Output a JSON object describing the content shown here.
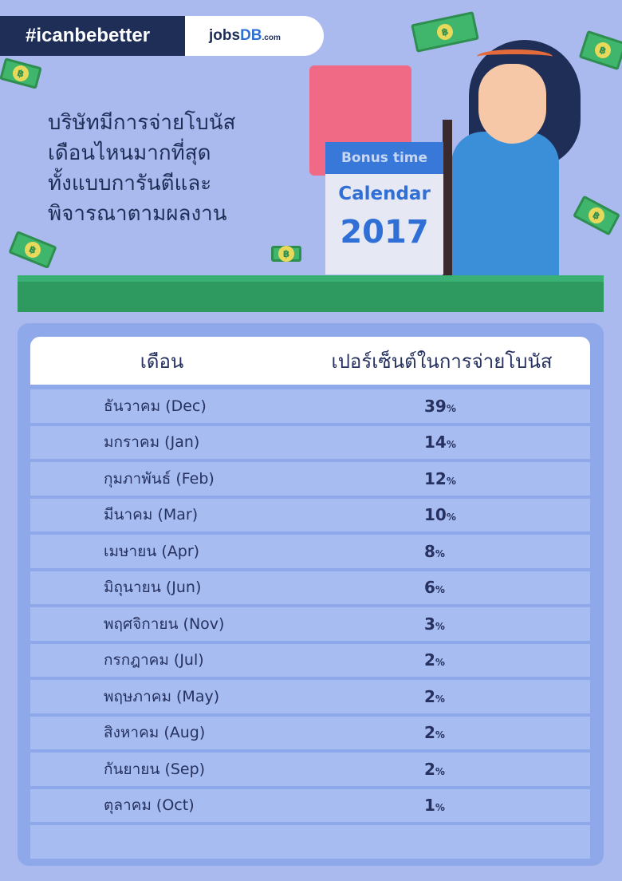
{
  "header": {
    "hashtag": "#icanbebetter",
    "logo": {
      "prefix": "jobs",
      "brand": "DB",
      "suffix": ".com"
    }
  },
  "headline": [
    "บริษัทมีการจ่ายโบนัส",
    "เดือนไหนมากที่สุด",
    "ทั้งแบบการันตีและ",
    "พิจารณาตามผลงาน"
  ],
  "calendar": {
    "band": "Bonus time",
    "title": "Calendar",
    "year": "2017"
  },
  "colors": {
    "background": "#abbaee",
    "navy": "#1f2e57",
    "green": "#2f9a60",
    "blue": "#2f6fd6",
    "pink": "#f06a86"
  },
  "chart_data": {
    "type": "table",
    "columns": [
      "เดือน",
      "เปอร์เซ็นต์ในการจ่ายโบนัส"
    ],
    "rows": [
      {
        "month": "ธันวาคม (Dec)",
        "value": "39",
        "unit": "%"
      },
      {
        "month": "มกราคม (Jan)",
        "value": "14",
        "unit": "%"
      },
      {
        "month": "กุมภาพันธ์ (Feb)",
        "value": "12",
        "unit": "%"
      },
      {
        "month": "มีนาคม (Mar)",
        "value": "10",
        "unit": "%"
      },
      {
        "month": "เมษายน (Apr)",
        "value": "8",
        "unit": "%"
      },
      {
        "month": "มิถุนายน (Jun)",
        "value": "6",
        "unit": "%"
      },
      {
        "month": "พฤศจิกายน (Nov)",
        "value": "3",
        "unit": "%"
      },
      {
        "month": "กรกฎาคม (Jul)",
        "value": "2",
        "unit": "%"
      },
      {
        "month": "พฤษภาคม (May)",
        "value": "2",
        "unit": "%"
      },
      {
        "month": "สิงหาคม (Aug)",
        "value": "2",
        "unit": "%"
      },
      {
        "month": "กันยายน (Sep)",
        "value": "2",
        "unit": "%"
      },
      {
        "month": "ตุลาคม (Oct)",
        "value": "1",
        "unit": "%"
      }
    ]
  }
}
